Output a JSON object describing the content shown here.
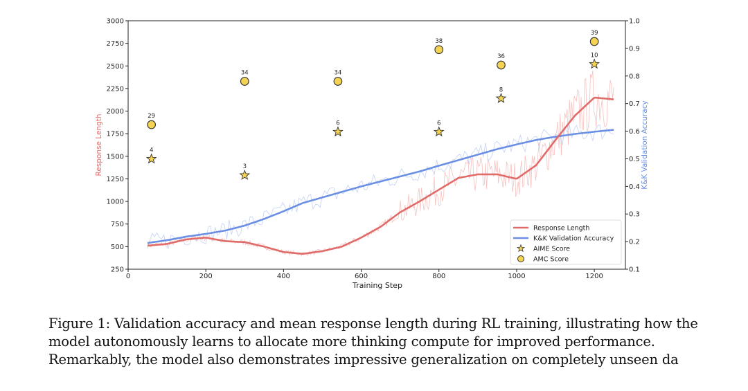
{
  "chart_data": {
    "type": "line",
    "xlabel": "Training Step",
    "ylabel_left": "Response Length",
    "ylabel_right": "K&K Validation Accuracy",
    "xlim": [
      0,
      1280
    ],
    "ylim_left": [
      250,
      3000
    ],
    "ylim_right": [
      0.1,
      1.0
    ],
    "x_ticks": [
      "0",
      "200",
      "400",
      "600",
      "800",
      "1000",
      "1200"
    ],
    "y_left_ticks": [
      "250",
      "500",
      "750",
      "1000",
      "1250",
      "1500",
      "1750",
      "2000",
      "2250",
      "2500",
      "2750",
      "3000"
    ],
    "y_right_ticks": [
      "0.1",
      "0.2",
      "0.3",
      "0.4",
      "0.5",
      "0.6",
      "0.7",
      "0.8",
      "0.9",
      "1.0"
    ],
    "legend_position": "lower-right",
    "legend": [
      "Response Length",
      "K&K Validation Accuracy",
      "AIME Score",
      "AMC Score"
    ],
    "colors": {
      "response": "#e06c6a",
      "response_raw": "#f4b6b4",
      "accuracy": "#6b8fe3",
      "accuracy_raw": "#c3d1f3",
      "marker_fill": "#f5d352",
      "marker_edge": "#333333",
      "response_label": "#e06c6a",
      "accuracy_label": "#6b8fe3"
    },
    "series": [
      {
        "name": "Response Length",
        "axis": "left",
        "x": [
          50,
          100,
          150,
          200,
          250,
          300,
          350,
          400,
          450,
          500,
          550,
          600,
          650,
          700,
          750,
          800,
          850,
          900,
          950,
          1000,
          1050,
          1100,
          1150,
          1200,
          1250
        ],
        "values": [
          510,
          530,
          580,
          600,
          560,
          550,
          500,
          440,
          420,
          450,
          500,
          600,
          720,
          880,
          1000,
          1130,
          1260,
          1300,
          1300,
          1250,
          1400,
          1680,
          1950,
          2150,
          2130
        ]
      },
      {
        "name": "K&K Validation Accuracy",
        "axis": "right",
        "x": [
          50,
          100,
          150,
          200,
          250,
          300,
          350,
          400,
          450,
          500,
          550,
          600,
          650,
          700,
          750,
          800,
          850,
          900,
          950,
          1000,
          1050,
          1100,
          1150,
          1200,
          1250
        ],
        "values": [
          0.195,
          0.205,
          0.218,
          0.228,
          0.24,
          0.258,
          0.282,
          0.31,
          0.34,
          0.36,
          0.38,
          0.4,
          0.418,
          0.436,
          0.454,
          0.475,
          0.495,
          0.515,
          0.535,
          0.552,
          0.568,
          0.58,
          0.59,
          0.598,
          0.605
        ]
      }
    ],
    "aime_scores": [
      {
        "x": 60,
        "y": 1470,
        "label": "4"
      },
      {
        "x": 300,
        "y": 1290,
        "label": "3"
      },
      {
        "x": 540,
        "y": 1770,
        "label": "6"
      },
      {
        "x": 800,
        "y": 1770,
        "label": "6"
      },
      {
        "x": 960,
        "y": 2140,
        "label": "8"
      },
      {
        "x": 1200,
        "y": 2520,
        "label": "10"
      }
    ],
    "amc_scores": [
      {
        "x": 60,
        "y": 1850,
        "label": "29"
      },
      {
        "x": 300,
        "y": 2330,
        "label": "34"
      },
      {
        "x": 540,
        "y": 2330,
        "label": "34"
      },
      {
        "x": 800,
        "y": 2680,
        "label": "38"
      },
      {
        "x": 960,
        "y": 2510,
        "label": "36"
      },
      {
        "x": 1200,
        "y": 2770,
        "label": "39"
      }
    ]
  },
  "caption": {
    "text": "Figure 1: Validation accuracy and mean response length during RL training, illustrating how the model autonomously learns to allocate more thinking compute for improved performance. Remarkably, the model also demonstrates impressive generalization on completely unseen da"
  }
}
